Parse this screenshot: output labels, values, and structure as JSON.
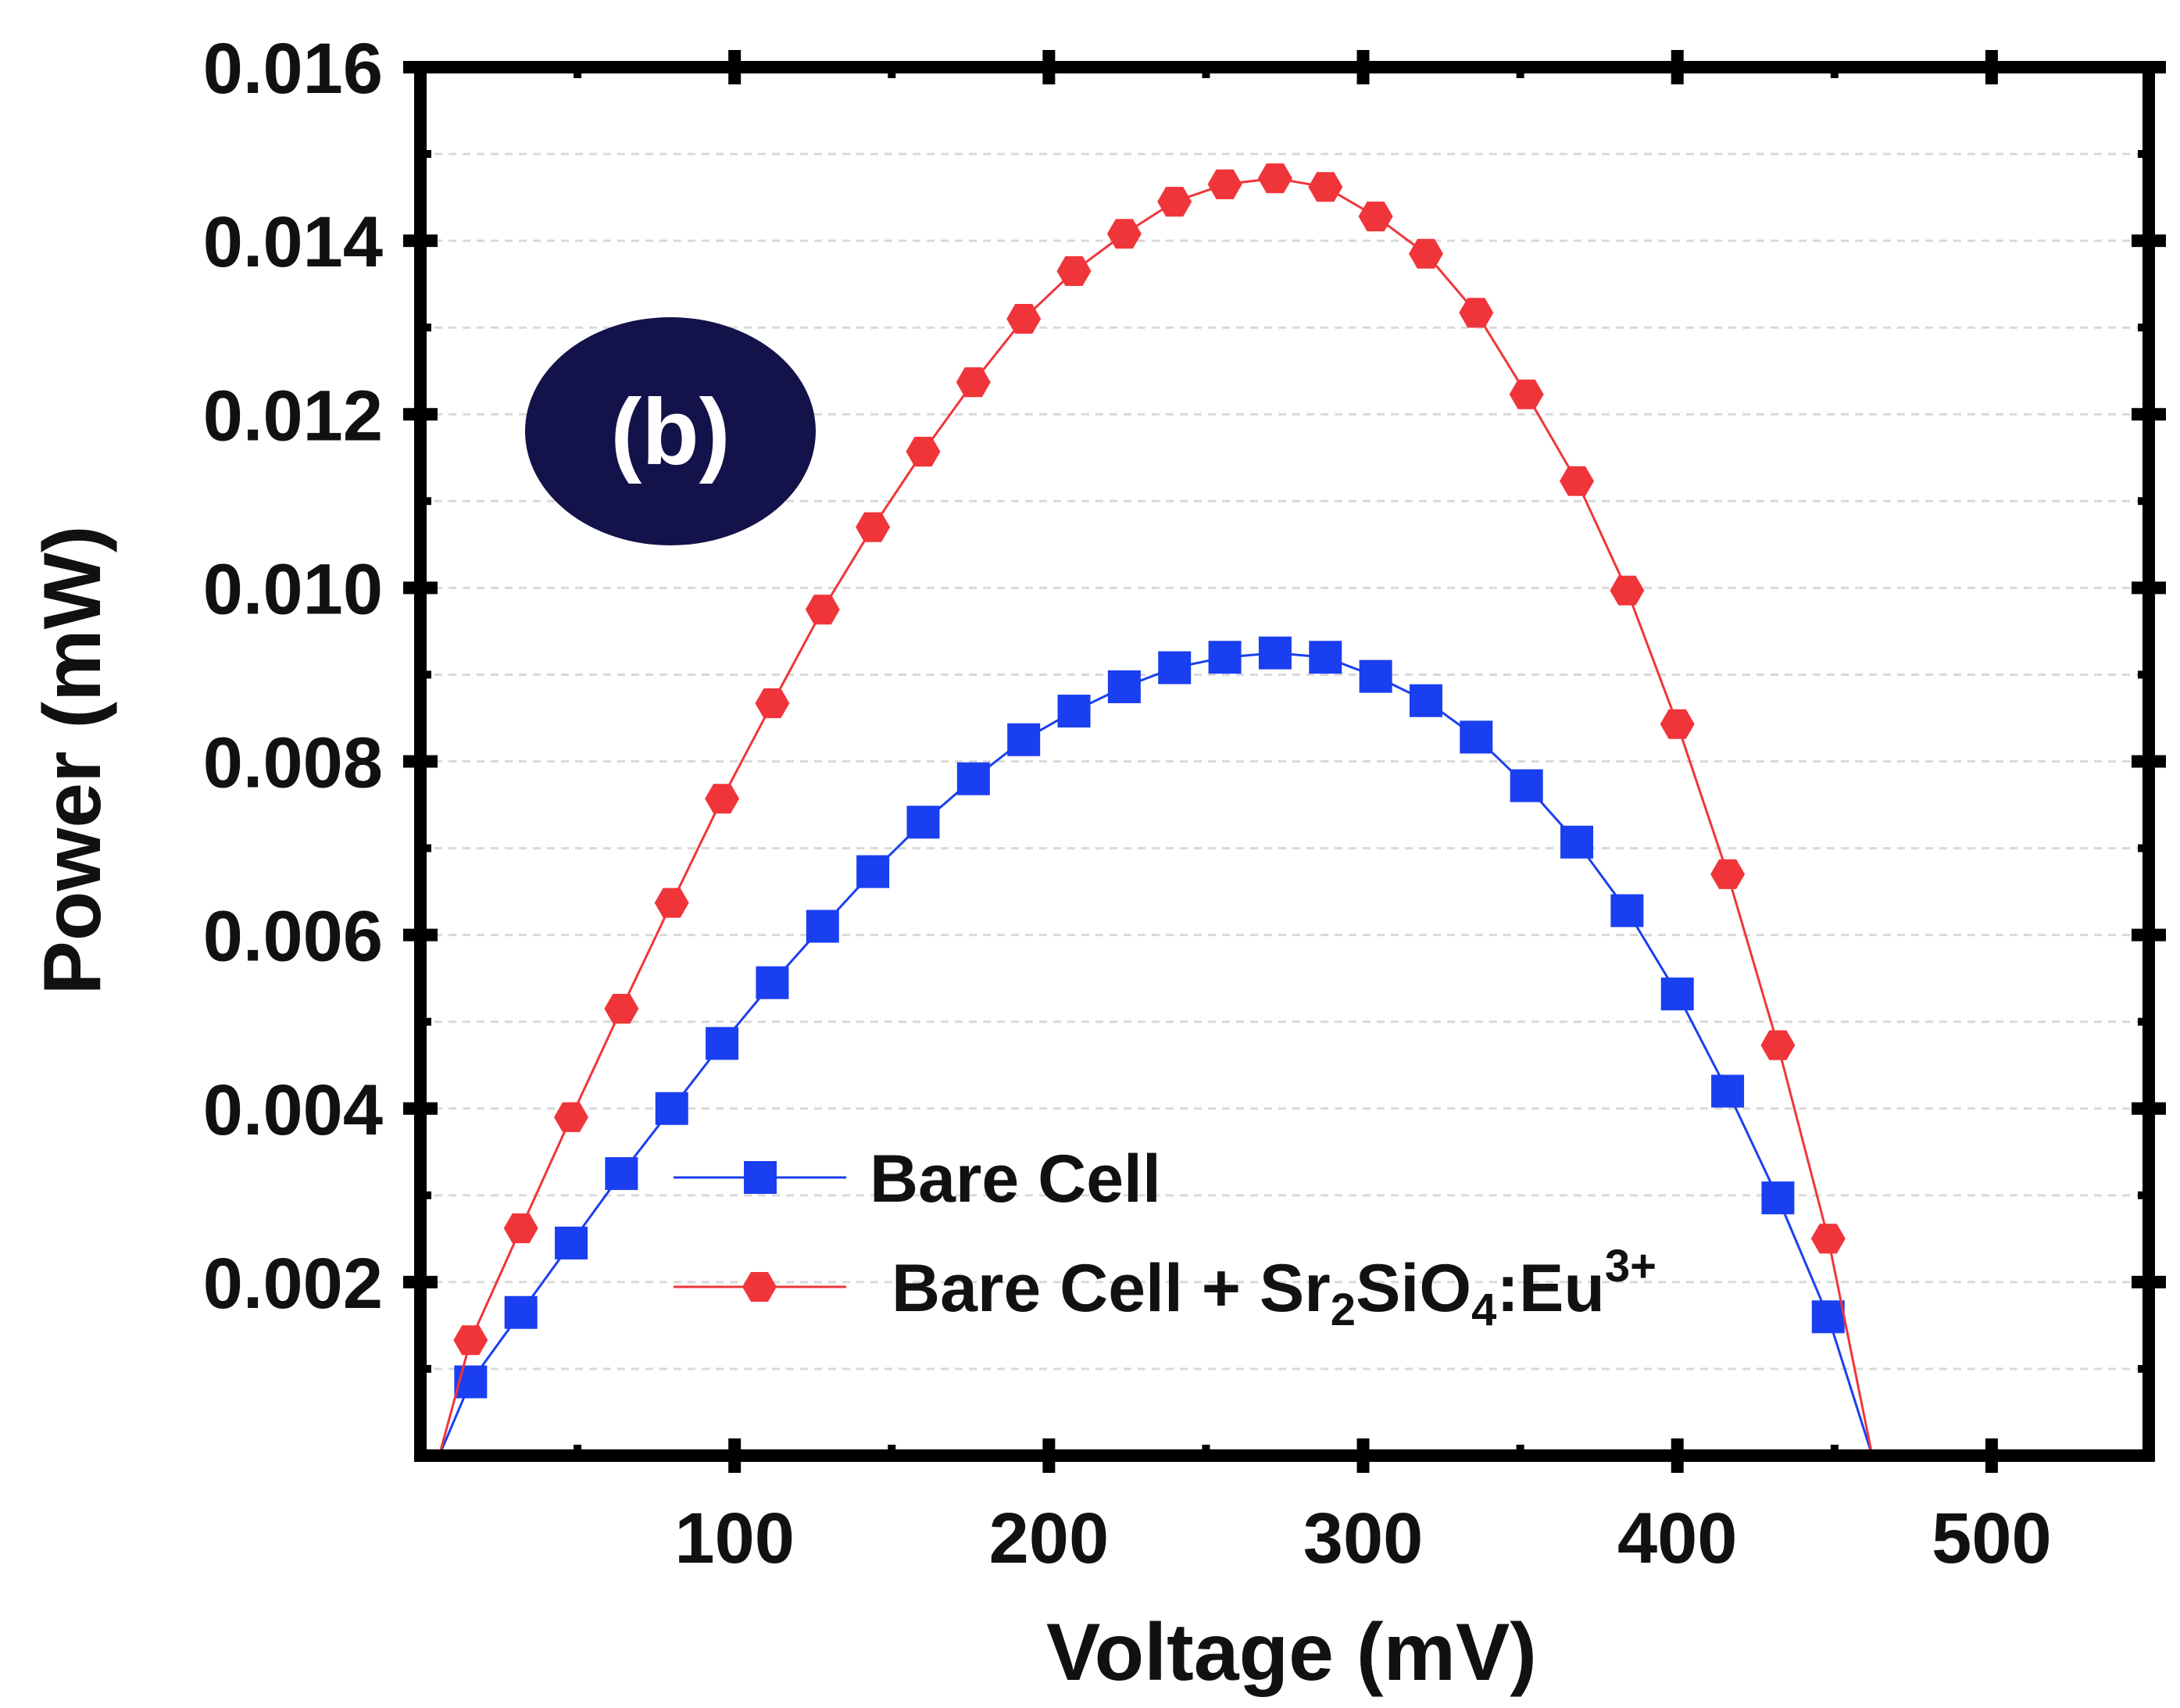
{
  "chart_data": {
    "type": "line",
    "panel_label": "(b)",
    "xlabel": "Voltage (mV)",
    "ylabel": "Power (mW)",
    "xlim": [
      0,
      550
    ],
    "ylim": [
      0,
      0.016
    ],
    "x_ticks": [
      100,
      200,
      300,
      400,
      500
    ],
    "x_tick_labels": [
      "100",
      "200",
      "300",
      "400",
      "500"
    ],
    "y_ticks": [
      0.002,
      0.004,
      0.006,
      0.008,
      0.01,
      0.012,
      0.014,
      0.016
    ],
    "y_tick_labels": [
      "0.002",
      "0.004",
      "0.006",
      "0.008",
      "0.010",
      "0.012",
      "0.014",
      "0.016"
    ],
    "grid": "horizontal dashed",
    "legend_position": "bottom-center",
    "series": [
      {
        "name": "Bare Cell",
        "legend_label": "Bare Cell",
        "color": "#1a3ff0",
        "marker": "square",
        "x": [
          16,
          32,
          48,
          64,
          80,
          96,
          112,
          128,
          144,
          160,
          176,
          192,
          208,
          224,
          240,
          256,
          272,
          288,
          304,
          320,
          336,
          352,
          368,
          384,
          400,
          416,
          432,
          448
        ],
        "values": [
          0.00085,
          0.00165,
          0.00245,
          0.00325,
          0.004,
          0.00475,
          0.00545,
          0.0061,
          0.00673,
          0.0073,
          0.0078,
          0.00825,
          0.00858,
          0.00886,
          0.00908,
          0.0092,
          0.00925,
          0.0092,
          0.00898,
          0.0087,
          0.00828,
          0.00772,
          0.00707,
          0.00628,
          0.00532,
          0.0042,
          0.00297,
          0.0016
        ],
        "curve_start": [
          6,
          0.0
        ],
        "curve_end": [
          462,
          0.0
        ]
      },
      {
        "name": "Bare Cell + Sr2SiO4:Eu3+",
        "legend_label": "Bare Cell + Sr",
        "legend_sub1": "2",
        "legend_mid": "SiO",
        "legend_sub2": "4",
        "legend_tail": ":Eu",
        "legend_sup": "3+",
        "color": "#f0353a",
        "marker": "hexagon",
        "x": [
          16,
          32,
          48,
          64,
          80,
          96,
          112,
          128,
          144,
          160,
          176,
          192,
          208,
          224,
          240,
          256,
          272,
          288,
          304,
          320,
          336,
          352,
          368,
          384,
          400,
          416,
          432,
          448
        ],
        "values": [
          0.00133,
          0.00262,
          0.0039,
          0.00515,
          0.00637,
          0.00757,
          0.00867,
          0.00975,
          0.0107,
          0.01157,
          0.01237,
          0.0131,
          0.01365,
          0.01408,
          0.01445,
          0.01465,
          0.01472,
          0.01462,
          0.01428,
          0.01385,
          0.01317,
          0.01223,
          0.01123,
          0.00997,
          0.00843,
          0.0067,
          0.00473,
          0.0025
        ],
        "curve_start": [
          6,
          0.0
        ],
        "curve_end": [
          462,
          0.0
        ]
      }
    ]
  }
}
